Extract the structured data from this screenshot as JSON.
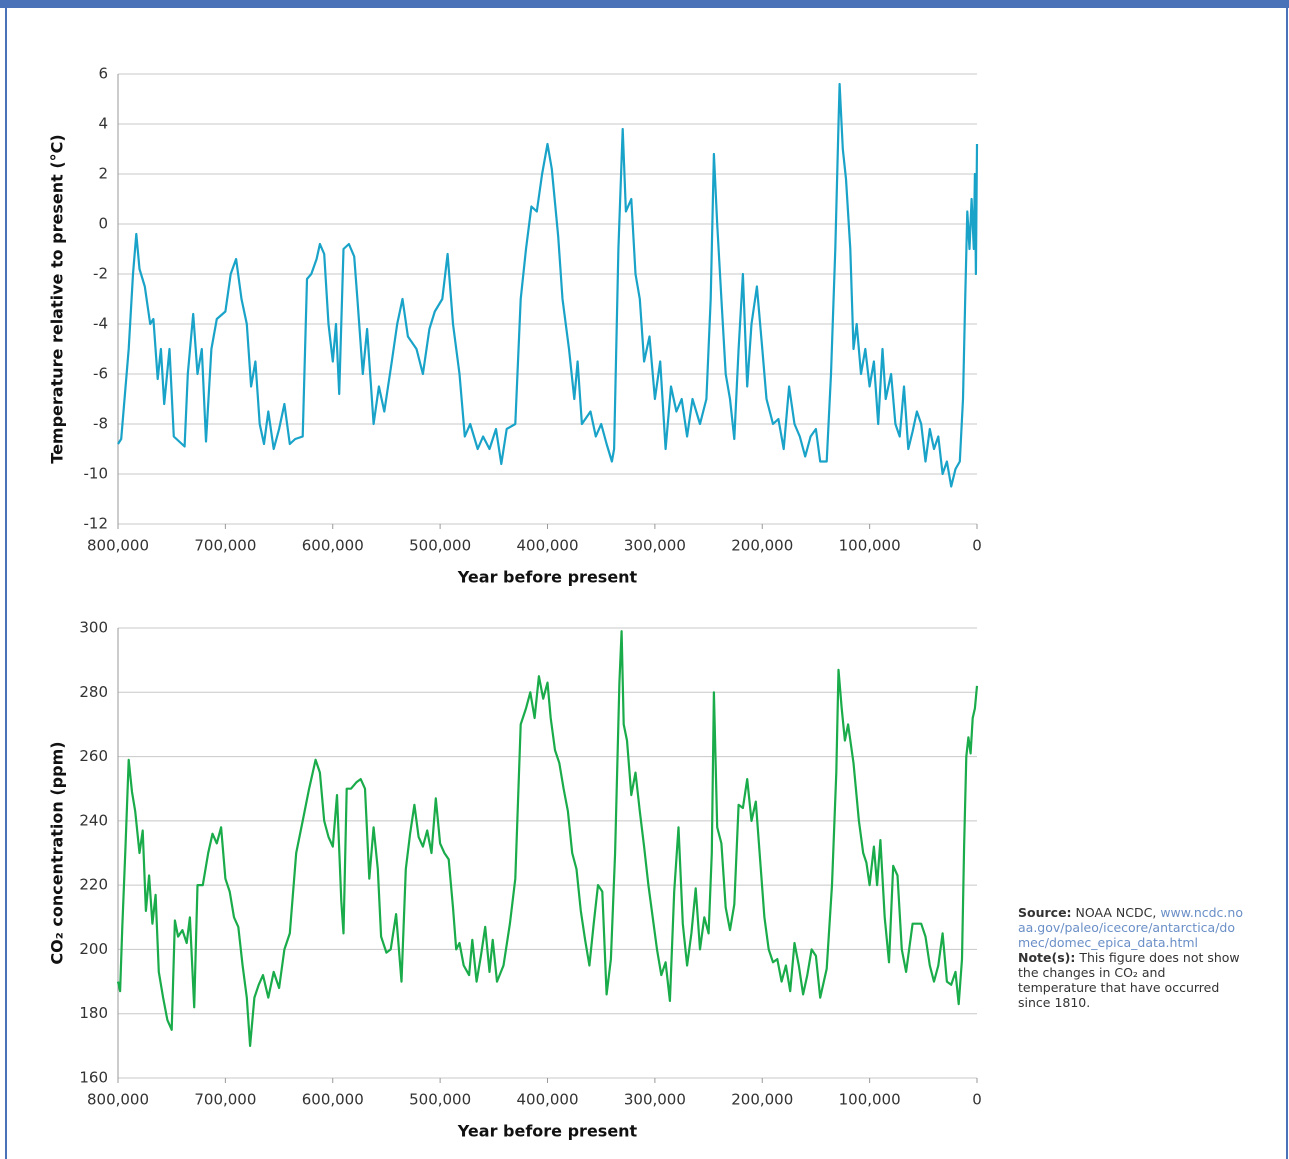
{
  "chart_data": [
    {
      "type": "line",
      "ylabel": "Temperature relative to present (°C)",
      "xlabel": "Year before present",
      "color": "#1aa3c8",
      "grid": true,
      "xlim": [
        800000,
        0
      ],
      "ylim": [
        -12,
        6
      ],
      "xticks": [
        {
          "value": 800000,
          "label": "800,000"
        },
        {
          "value": 700000,
          "label": "700,000"
        },
        {
          "value": 600000,
          "label": "600,000"
        },
        {
          "value": 500000,
          "label": "500,000"
        },
        {
          "value": 400000,
          "label": "400,000"
        },
        {
          "value": 300000,
          "label": "300,000"
        },
        {
          "value": 200000,
          "label": "200,000"
        },
        {
          "value": 100000,
          "label": "100,000"
        },
        0
      ],
      "yticks": [
        6,
        4,
        2,
        0,
        -2,
        -4,
        -6,
        -8,
        -10,
        -12
      ],
      "x": [
        800000,
        797000,
        790000,
        786000,
        783000,
        780000,
        775000,
        770000,
        767000,
        763000,
        760000,
        757000,
        752000,
        748000,
        743000,
        738000,
        735000,
        730000,
        726000,
        722000,
        718000,
        713000,
        708000,
        700000,
        695000,
        690000,
        685000,
        680000,
        676000,
        672000,
        668000,
        664000,
        660000,
        655000,
        650000,
        645000,
        640000,
        635000,
        628000,
        624000,
        620000,
        615000,
        612000,
        608000,
        604000,
        600000,
        597000,
        594000,
        590000,
        585000,
        580000,
        577000,
        572000,
        568000,
        562000,
        557000,
        552000,
        545000,
        540000,
        535000,
        530000,
        522000,
        516000,
        510000,
        505000,
        498000,
        493000,
        488000,
        482000,
        477000,
        472000,
        465000,
        460000,
        454000,
        448000,
        443000,
        438000,
        430000,
        425000,
        420000,
        415000,
        410000,
        405000,
        400000,
        396000,
        390000,
        386000,
        380000,
        375000,
        372000,
        368000,
        360000,
        355000,
        350000,
        345000,
        340000,
        338000,
        334000,
        330000,
        327000,
        322000,
        318000,
        314000,
        310000,
        305000,
        300000,
        295000,
        290000,
        285000,
        280000,
        275000,
        270000,
        265000,
        258000,
        252000,
        248000,
        245000,
        242000,
        238000,
        234000,
        230000,
        226000,
        222000,
        218000,
        214000,
        210000,
        205000,
        200000,
        196000,
        190000,
        185000,
        180000,
        175000,
        170000,
        165000,
        160000,
        155000,
        150000,
        146000,
        140000,
        136000,
        132000,
        129000,
        128000,
        125000,
        122000,
        118000,
        115000,
        112000,
        108000,
        104000,
        100000,
        96000,
        92000,
        88000,
        85000,
        80000,
        76000,
        72000,
        68000,
        64000,
        60000,
        56000,
        52000,
        48000,
        44000,
        40000,
        36000,
        32000,
        28000,
        24000,
        20000,
        16000,
        13000,
        11000,
        9000,
        7000,
        5000,
        3000,
        2000,
        1000,
        0
      ],
      "values": [
        -8.8,
        -8.6,
        -5,
        -2,
        -0.4,
        -1.8,
        -2.5,
        -4,
        -3.8,
        -6.2,
        -5,
        -7.2,
        -5,
        -8.5,
        -8.7,
        -8.9,
        -6,
        -3.6,
        -6,
        -5,
        -8.7,
        -5,
        -3.8,
        -3.5,
        -2,
        -1.4,
        -3,
        -4,
        -6.5,
        -5.5,
        -8,
        -8.8,
        -7.5,
        -9,
        -8.2,
        -7.2,
        -8.8,
        -8.6,
        -8.5,
        -2.2,
        -2,
        -1.4,
        -0.8,
        -1.2,
        -4,
        -5.5,
        -4,
        -6.8,
        -1,
        -0.8,
        -1.3,
        -3,
        -6,
        -4.2,
        -8,
        -6.5,
        -7.5,
        -5.5,
        -4,
        -3,
        -4.5,
        -5,
        -6,
        -4.2,
        -3.5,
        -3,
        -1.2,
        -4,
        -6,
        -8.5,
        -8,
        -9,
        -8.5,
        -9,
        -8.2,
        -9.6,
        -8.2,
        -8,
        -3,
        -1,
        0.7,
        0.5,
        2,
        3.2,
        2.2,
        -0.5,
        -3,
        -5,
        -7,
        -5.5,
        -8,
        -7.5,
        -8.5,
        -8,
        -8.8,
        -9.5,
        -9,
        -1,
        3.8,
        0.5,
        1,
        -2,
        -3,
        -5.5,
        -4.5,
        -7,
        -5.5,
        -9,
        -6.5,
        -7.5,
        -7,
        -8.5,
        -7,
        -8,
        -7,
        -3,
        2.8,
        0,
        -3,
        -6,
        -7,
        -8.6,
        -5,
        -2,
        -6.5,
        -4,
        -2.5,
        -5,
        -7,
        -8,
        -7.8,
        -9,
        -6.5,
        -8,
        -8.5,
        -9.3,
        -8.5,
        -8.2,
        -9.5,
        -9.5,
        -6,
        -1,
        4,
        5.6,
        3,
        1.8,
        -1,
        -5,
        -4,
        -6,
        -5,
        -6.5,
        -5.5,
        -8,
        -5,
        -7,
        -6,
        -8,
        -8.5,
        -6.5,
        -9,
        -8.3,
        -7.5,
        -8,
        -9.5,
        -8.2,
        -9,
        -8.5,
        -10,
        -9.5,
        -10.5,
        -9.8,
        -9.5,
        -7,
        -3,
        0.5,
        -1,
        1,
        -1,
        2,
        -2,
        3.2
      ]
    },
    {
      "type": "line",
      "ylabel": "CO₂ concentration (ppm)",
      "xlabel": "Year before present",
      "color": "#1aab4a",
      "grid": true,
      "xlim": [
        800000,
        0
      ],
      "ylim": [
        160,
        300
      ],
      "xticks": [
        {
          "value": 800000,
          "label": "800,000"
        },
        {
          "value": 700000,
          "label": "700,000"
        },
        {
          "value": 600000,
          "label": "600,000"
        },
        {
          "value": 500000,
          "label": "500,000"
        },
        {
          "value": 400000,
          "label": "400,000"
        },
        {
          "value": 300000,
          "label": "300,000"
        },
        {
          "value": 200000,
          "label": "200,000"
        },
        {
          "value": 100000,
          "label": "100,000"
        },
        0
      ],
      "yticks": [
        300,
        280,
        260,
        240,
        220,
        200,
        180,
        160
      ],
      "x": [
        800000,
        798000,
        796000,
        793000,
        790000,
        787000,
        784000,
        780000,
        777000,
        774000,
        771000,
        768000,
        765000,
        762000,
        758000,
        754000,
        750000,
        747000,
        744000,
        740000,
        736000,
        733000,
        729000,
        726000,
        721000,
        716000,
        712000,
        708000,
        704000,
        700000,
        696000,
        692000,
        688000,
        684000,
        680000,
        677000,
        673000,
        669000,
        665000,
        660000,
        655000,
        650000,
        645000,
        640000,
        634000,
        628000,
        622000,
        616000,
        612000,
        608000,
        604000,
        600000,
        596000,
        592000,
        590000,
        587000,
        583000,
        578000,
        574000,
        570000,
        566000,
        562000,
        558000,
        555000,
        550000,
        546000,
        541000,
        536000,
        532000,
        528000,
        524000,
        520000,
        516000,
        512000,
        508000,
        504000,
        500000,
        496000,
        492000,
        488000,
        485000,
        482000,
        478000,
        473000,
        470000,
        466000,
        462000,
        458000,
        454000,
        451000,
        447000,
        441000,
        435000,
        430000,
        425000,
        420000,
        416000,
        412000,
        408000,
        404000,
        400000,
        397000,
        393000,
        389000,
        385000,
        381000,
        377000,
        373000,
        369000,
        365000,
        361000,
        357000,
        353000,
        349000,
        345000,
        341000,
        337000,
        333000,
        331000,
        329000,
        326000,
        322000,
        318000,
        314000,
        310000,
        306000,
        302000,
        298000,
        294000,
        290000,
        286000,
        282000,
        278000,
        274000,
        270000,
        266000,
        262000,
        258000,
        254000,
        250000,
        247000,
        245000,
        242000,
        238000,
        234000,
        230000,
        226000,
        222000,
        218000,
        214000,
        210000,
        206000,
        202000,
        198000,
        194000,
        190000,
        186000,
        182000,
        178000,
        174000,
        170000,
        166000,
        162000,
        158000,
        154000,
        150000,
        146000,
        140000,
        135000,
        131000,
        129000,
        126000,
        123000,
        120000,
        115000,
        110000,
        106000,
        103000,
        100000,
        96000,
        93000,
        90000,
        86000,
        82000,
        78000,
        74000,
        70000,
        66000,
        60000,
        52000,
        48000,
        44000,
        40000,
        36000,
        32000,
        28000,
        24000,
        20000,
        17000,
        14000,
        12000,
        10000,
        8000,
        6000,
        4000,
        2000,
        0
      ],
      "values": [
        190,
        187,
        207,
        232,
        259,
        249,
        243,
        230,
        237,
        212,
        223,
        208,
        217,
        193,
        185,
        178,
        175,
        209,
        204,
        206,
        202,
        210,
        182,
        220,
        220,
        230,
        236,
        233,
        238,
        222,
        218,
        210,
        207,
        195,
        185,
        170,
        185,
        189,
        192,
        185,
        193,
        188,
        200,
        205,
        230,
        240,
        250,
        259,
        255,
        240,
        235,
        232,
        248,
        215,
        205,
        250,
        250,
        252,
        253,
        250,
        222,
        238,
        225,
        204,
        199,
        200,
        211,
        190,
        225,
        236,
        245,
        235,
        232,
        237,
        230,
        247,
        233,
        230,
        228,
        213,
        200,
        202,
        195,
        192,
        203,
        190,
        198,
        207,
        193,
        203,
        190,
        195,
        208,
        222,
        270,
        275,
        280,
        272,
        285,
        278,
        283,
        272,
        262,
        258,
        250,
        243,
        230,
        225,
        212,
        203,
        195,
        208,
        220,
        218,
        186,
        197,
        230,
        283,
        299,
        270,
        265,
        248,
        255,
        243,
        232,
        220,
        210,
        200,
        192,
        196,
        184,
        218,
        238,
        208,
        195,
        205,
        219,
        200,
        210,
        205,
        230,
        280,
        238,
        233,
        213,
        206,
        214,
        245,
        244,
        253,
        240,
        246,
        228,
        210,
        200,
        196,
        197,
        190,
        195,
        187,
        202,
        195,
        186,
        192,
        200,
        198,
        185,
        194,
        220,
        255,
        287,
        275,
        265,
        270,
        258,
        240,
        230,
        227,
        220,
        232,
        220,
        234,
        210,
        196,
        226,
        223,
        200,
        193,
        208,
        208,
        204,
        195,
        190,
        195,
        205,
        190,
        189,
        193,
        183,
        197,
        232,
        260,
        266,
        261,
        272,
        275,
        282
      ]
    }
  ],
  "notes": {
    "source_label": "Source:",
    "source_text": "NOAA NCDC,",
    "source_link": "www.ncdc.noaa.gov/paleo/icecore/antarctica/domec/domec_epica_data.html",
    "note_label": "Note(s):",
    "note_text": "This figure does not show the changes in CO₂ and temperature that have occurred since 1810."
  }
}
